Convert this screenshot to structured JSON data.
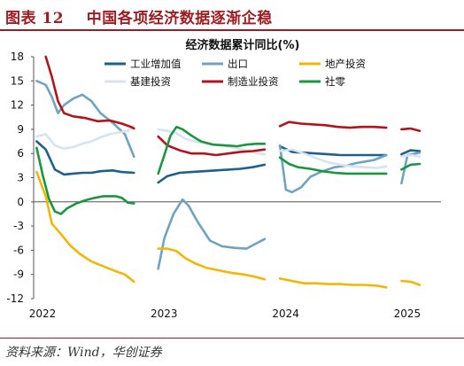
{
  "figure": {
    "label": "图表 12",
    "caption": "中国各项经济数据逐渐企稳",
    "source": "资料来源：Wind，华创证券"
  },
  "chart_data": {
    "type": "line",
    "title": "经济数据累计同比(%)",
    "xlabel": "",
    "ylabel": "",
    "x_ticks": [
      "2022",
      "2023",
      "2024",
      "2025"
    ],
    "ylim": [
      -12,
      18
    ],
    "y_ticks": [
      -12,
      -9,
      -6,
      -3,
      0,
      3,
      6,
      9,
      12,
      15,
      18
    ],
    "grid": false,
    "legend": "top",
    "series": [
      {
        "name": "工业增加值",
        "color": "#1f5f8b",
        "segments": [
          [
            [
              0.1,
              7.5
            ],
            [
              0.4,
              6.5
            ],
            [
              0.7,
              4.0
            ],
            [
              1.0,
              3.4
            ],
            [
              1.3,
              3.5
            ],
            [
              1.6,
              3.6
            ],
            [
              1.9,
              3.6
            ],
            [
              2.2,
              3.8
            ],
            [
              2.6,
              3.9
            ],
            [
              2.9,
              3.7
            ],
            [
              3.3,
              3.6
            ]
          ],
          [
            [
              4.1,
              2.4
            ],
            [
              4.4,
              3.2
            ],
            [
              4.8,
              3.6
            ],
            [
              5.2,
              3.7
            ],
            [
              5.6,
              3.8
            ],
            [
              6.0,
              3.9
            ],
            [
              6.4,
              4.0
            ],
            [
              6.8,
              4.1
            ],
            [
              7.2,
              4.3
            ],
            [
              7.6,
              4.6
            ]
          ],
          [
            [
              8.1,
              6.9
            ],
            [
              8.5,
              6.2
            ],
            [
              8.9,
              6.1
            ],
            [
              9.3,
              6.0
            ],
            [
              9.7,
              5.9
            ],
            [
              10.1,
              5.8
            ],
            [
              10.5,
              5.8
            ],
            [
              10.9,
              5.8
            ],
            [
              11.3,
              5.8
            ],
            [
              11.6,
              5.8
            ]
          ],
          [
            [
              12.1,
              5.9
            ],
            [
              12.4,
              6.4
            ],
            [
              12.7,
              6.3
            ]
          ]
        ]
      },
      {
        "name": "出口",
        "color": "#6fa3c2",
        "segments": [
          [
            [
              0.1,
              15.0
            ],
            [
              0.4,
              14.5
            ],
            [
              0.6,
              13.0
            ],
            [
              0.8,
              11.0
            ],
            [
              1.0,
              12.0
            ],
            [
              1.3,
              12.8
            ],
            [
              1.6,
              13.3
            ],
            [
              1.9,
              12.5
            ],
            [
              2.2,
              11.0
            ],
            [
              2.6,
              9.8
            ],
            [
              3.0,
              8.4
            ],
            [
              3.3,
              5.6
            ]
          ],
          [
            [
              4.1,
              -8.3
            ],
            [
              4.3,
              -4.5
            ],
            [
              4.6,
              -1.5
            ],
            [
              4.9,
              0.3
            ],
            [
              5.1,
              -0.5
            ],
            [
              5.4,
              -2.5
            ],
            [
              5.8,
              -4.8
            ],
            [
              6.2,
              -5.5
            ],
            [
              6.6,
              -5.7
            ],
            [
              7.0,
              -5.8
            ],
            [
              7.3,
              -5.2
            ],
            [
              7.6,
              -4.6
            ]
          ],
          [
            [
              8.1,
              7.0
            ],
            [
              8.3,
              1.5
            ],
            [
              8.5,
              1.2
            ],
            [
              8.8,
              1.8
            ],
            [
              9.1,
              3.1
            ],
            [
              9.5,
              3.8
            ],
            [
              9.9,
              4.3
            ],
            [
              10.3,
              4.5
            ],
            [
              10.6,
              4.8
            ],
            [
              10.9,
              5.0
            ],
            [
              11.2,
              5.2
            ],
            [
              11.6,
              5.8
            ]
          ],
          [
            [
              12.1,
              2.3
            ],
            [
              12.3,
              5.8
            ],
            [
              12.7,
              6.1
            ]
          ]
        ]
      },
      {
        "name": "地产投资",
        "color": "#f2b705",
        "segments": [
          [
            [
              0.1,
              3.7
            ],
            [
              0.4,
              0.7
            ],
            [
              0.6,
              -2.7
            ],
            [
              0.9,
              -4.0
            ],
            [
              1.2,
              -5.4
            ],
            [
              1.5,
              -6.4
            ],
            [
              1.9,
              -7.4
            ],
            [
              2.3,
              -8.0
            ],
            [
              2.7,
              -8.6
            ],
            [
              3.0,
              -9.0
            ],
            [
              3.3,
              -9.9
            ]
          ],
          [
            [
              4.1,
              -5.8
            ],
            [
              4.4,
              -5.8
            ],
            [
              4.7,
              -6.1
            ],
            [
              5.0,
              -7.0
            ],
            [
              5.3,
              -7.6
            ],
            [
              5.7,
              -8.2
            ],
            [
              6.1,
              -8.5
            ],
            [
              6.5,
              -8.8
            ],
            [
              6.9,
              -9.0
            ],
            [
              7.3,
              -9.3
            ],
            [
              7.6,
              -9.6
            ]
          ],
          [
            [
              8.1,
              -9.5
            ],
            [
              8.5,
              -9.8
            ],
            [
              8.9,
              -10.1
            ],
            [
              9.3,
              -10.1
            ],
            [
              9.7,
              -10.2
            ],
            [
              10.1,
              -10.2
            ],
            [
              10.5,
              -10.3
            ],
            [
              10.9,
              -10.3
            ],
            [
              11.3,
              -10.4
            ],
            [
              11.6,
              -10.6
            ]
          ],
          [
            [
              12.1,
              -9.8
            ],
            [
              12.4,
              -9.9
            ],
            [
              12.7,
              -10.3
            ]
          ]
        ]
      },
      {
        "name": "基建投资",
        "color": "#d7e4ef",
        "segments": [
          [
            [
              0.1,
              8.1
            ],
            [
              0.4,
              8.4
            ],
            [
              0.7,
              7.0
            ],
            [
              1.0,
              6.6
            ],
            [
              1.3,
              6.8
            ],
            [
              1.6,
              7.2
            ],
            [
              1.9,
              7.5
            ],
            [
              2.2,
              8.0
            ],
            [
              2.5,
              8.4
            ],
            [
              2.8,
              8.6
            ],
            [
              3.1,
              8.8
            ],
            [
              3.3,
              9.4
            ]
          ],
          [
            [
              4.1,
              9.0
            ],
            [
              4.4,
              8.8
            ],
            [
              4.7,
              8.5
            ],
            [
              5.0,
              7.8
            ],
            [
              5.4,
              7.4
            ],
            [
              5.8,
              7.2
            ],
            [
              6.2,
              7.0
            ],
            [
              6.6,
              6.7
            ],
            [
              7.0,
              6.4
            ],
            [
              7.3,
              6.1
            ],
            [
              7.6,
              5.9
            ]
          ],
          [
            [
              8.1,
              6.3
            ],
            [
              8.5,
              6.5
            ],
            [
              8.9,
              6.0
            ],
            [
              9.3,
              5.4
            ],
            [
              9.7,
              4.9
            ],
            [
              10.1,
              4.6
            ],
            [
              10.5,
              4.4
            ],
            [
              10.9,
              4.3
            ],
            [
              11.3,
              4.2
            ],
            [
              11.6,
              4.4
            ]
          ],
          [
            [
              12.1,
              5.6
            ],
            [
              12.4,
              5.8
            ],
            [
              12.7,
              5.6
            ]
          ]
        ]
      },
      {
        "name": "制造业投资",
        "color": "#b3141b",
        "segments": [
          [
            [
              0.4,
              18.0
            ],
            [
              0.6,
              15.5
            ],
            [
              0.8,
              12.5
            ],
            [
              1.0,
              11.0
            ],
            [
              1.3,
              10.6
            ],
            [
              1.7,
              10.4
            ],
            [
              2.1,
              10.0
            ],
            [
              2.5,
              10.1
            ],
            [
              2.9,
              9.7
            ],
            [
              3.2,
              9.3
            ],
            [
              3.3,
              9.1
            ]
          ],
          [
            [
              4.1,
              8.1
            ],
            [
              4.4,
              7.0
            ],
            [
              4.8,
              6.4
            ],
            [
              5.2,
              6.0
            ],
            [
              5.6,
              6.0
            ],
            [
              6.0,
              5.8
            ],
            [
              6.4,
              6.0
            ],
            [
              6.8,
              6.2
            ],
            [
              7.2,
              6.3
            ],
            [
              7.6,
              6.5
            ]
          ],
          [
            [
              8.1,
              9.4
            ],
            [
              8.4,
              9.9
            ],
            [
              8.8,
              9.7
            ],
            [
              9.2,
              9.6
            ],
            [
              9.6,
              9.5
            ],
            [
              10.0,
              9.3
            ],
            [
              10.4,
              9.2
            ],
            [
              10.8,
              9.3
            ],
            [
              11.2,
              9.3
            ],
            [
              11.6,
              9.2
            ]
          ],
          [
            [
              12.1,
              9.0
            ],
            [
              12.4,
              9.1
            ],
            [
              12.7,
              8.8
            ]
          ]
        ]
      },
      {
        "name": "社零",
        "color": "#1a9641",
        "segments": [
          [
            [
              0.1,
              6.7
            ],
            [
              0.3,
              3.3
            ],
            [
              0.5,
              0.4
            ],
            [
              0.7,
              -1.2
            ],
            [
              0.9,
              -1.5
            ],
            [
              1.1,
              -0.8
            ],
            [
              1.4,
              -0.2
            ],
            [
              1.7,
              0.2
            ],
            [
              2.0,
              0.5
            ],
            [
              2.3,
              0.7
            ],
            [
              2.7,
              0.7
            ],
            [
              2.9,
              0.5
            ],
            [
              3.1,
              -0.1
            ],
            [
              3.3,
              -0.2
            ]
          ],
          [
            [
              4.1,
              3.5
            ],
            [
              4.3,
              5.8
            ],
            [
              4.5,
              8.2
            ],
            [
              4.7,
              9.3
            ],
            [
              4.9,
              9.0
            ],
            [
              5.2,
              8.2
            ],
            [
              5.5,
              7.5
            ],
            [
              5.9,
              7.1
            ],
            [
              6.3,
              7.0
            ],
            [
              6.7,
              6.9
            ],
            [
              7.0,
              7.1
            ],
            [
              7.3,
              7.2
            ],
            [
              7.6,
              7.2
            ]
          ],
          [
            [
              8.1,
              5.5
            ],
            [
              8.4,
              4.7
            ],
            [
              8.7,
              4.3
            ],
            [
              9.1,
              4.1
            ],
            [
              9.5,
              3.8
            ],
            [
              9.9,
              3.6
            ],
            [
              10.3,
              3.5
            ],
            [
              10.7,
              3.5
            ],
            [
              11.1,
              3.5
            ],
            [
              11.6,
              3.5
            ]
          ],
          [
            [
              12.1,
              4.0
            ],
            [
              12.4,
              4.6
            ],
            [
              12.7,
              4.7
            ]
          ]
        ]
      }
    ]
  }
}
